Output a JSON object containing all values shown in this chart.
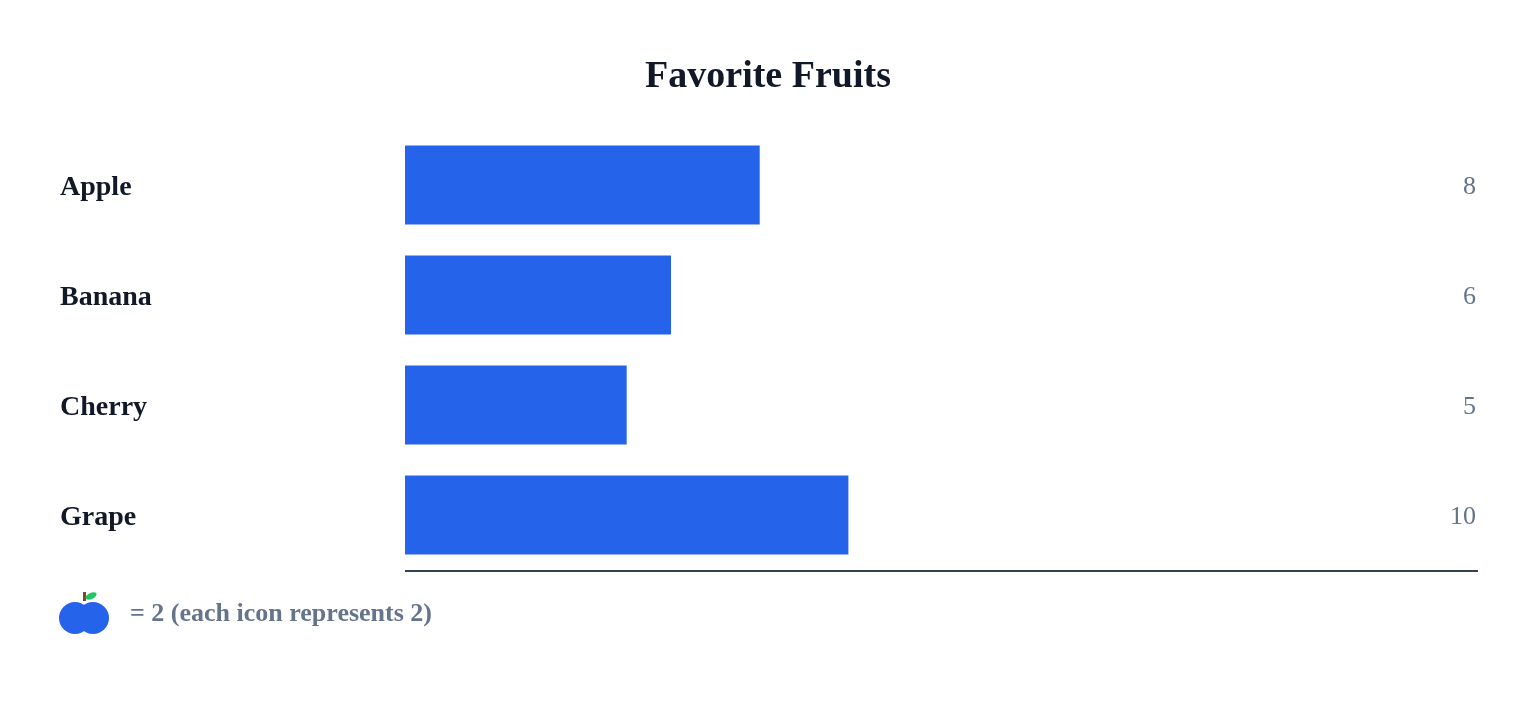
{
  "chart_data": {
    "type": "bar",
    "orientation": "horizontal",
    "title": "Favorite Fruits",
    "categories": [
      "Apple",
      "Banana",
      "Cherry",
      "Grape"
    ],
    "values": [
      8,
      6,
      5,
      10
    ],
    "color": "#2563eb",
    "data_labels": true,
    "annotations": [
      "= 2 (each icon represents 2)"
    ]
  }
}
